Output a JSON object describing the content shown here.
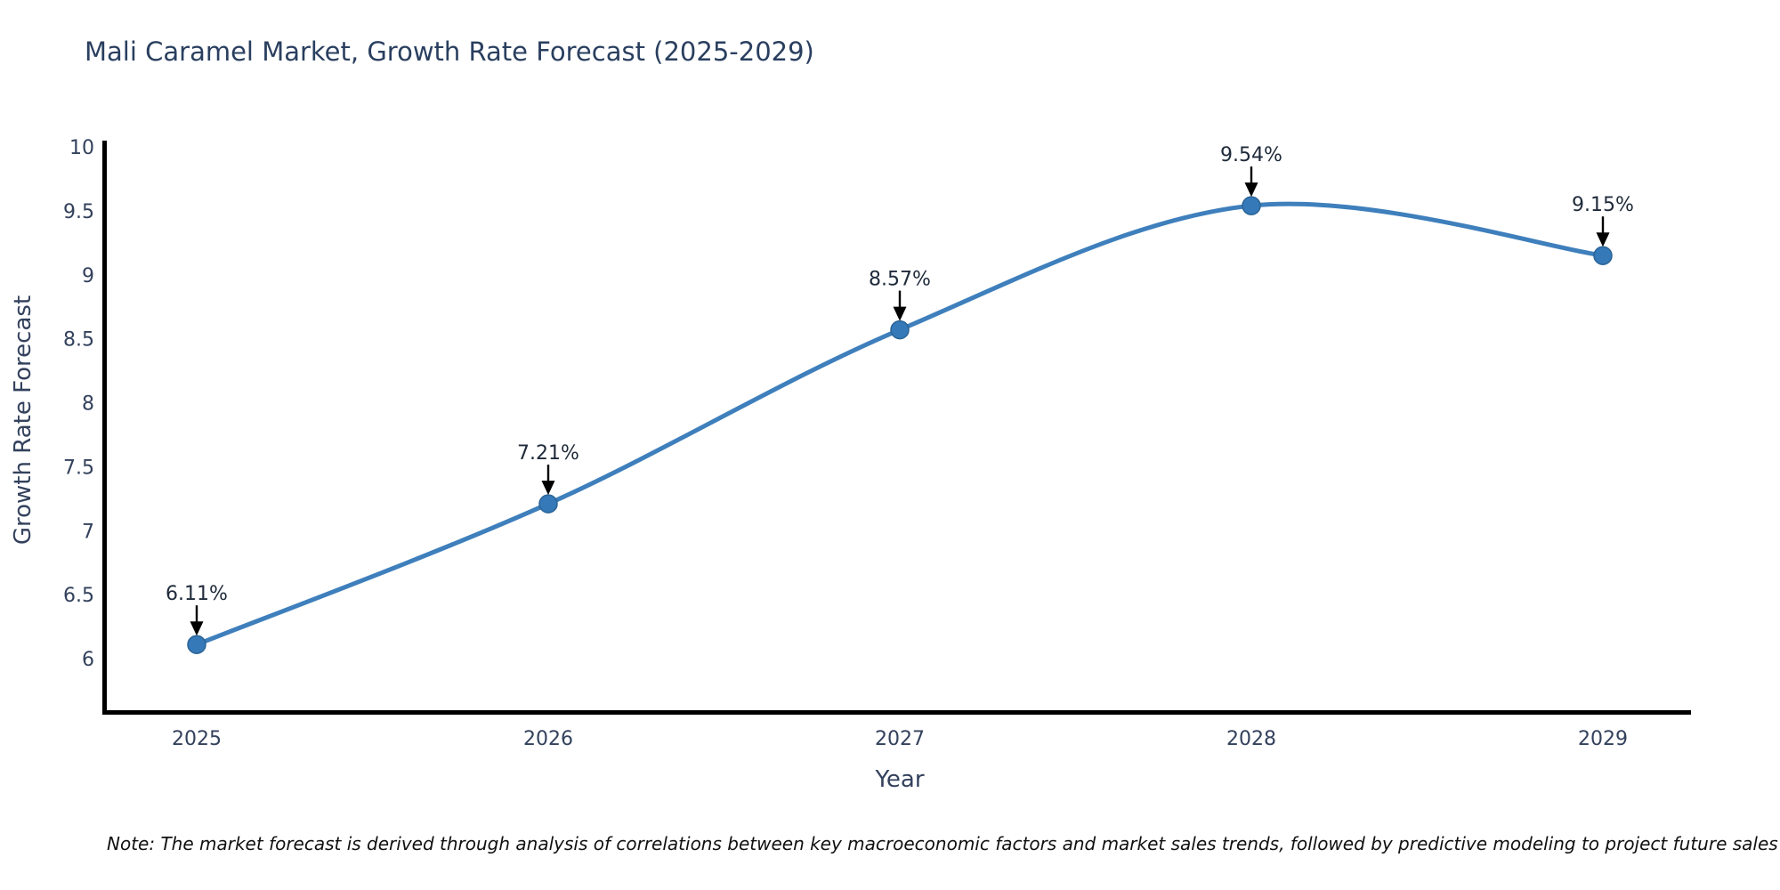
{
  "title": "Mali Caramel Market, Growth Rate Forecast (2025-2029)",
  "note": "Note: The market forecast is derived through analysis of correlations between key macroeconomic factors and market sales trends, followed by predictive modeling to project future sales",
  "chart_data": {
    "type": "line",
    "title": "Mali Caramel Market, Growth Rate Forecast (2025-2029)",
    "xlabel": "Year",
    "ylabel": "Growth Rate Forecast",
    "categories": [
      "2025",
      "2026",
      "2027",
      "2028",
      "2029"
    ],
    "values": [
      6.11,
      7.21,
      8.57,
      9.54,
      9.15
    ],
    "point_labels": [
      "6.11%",
      "7.21%",
      "8.57%",
      "9.54%",
      "9.15%"
    ],
    "yticks": [
      "6",
      "6.5",
      "7",
      "7.5",
      "8",
      "8.5",
      "9",
      "9.5",
      "10"
    ],
    "ytick_values": [
      6,
      6.5,
      7,
      7.5,
      8,
      8.5,
      9,
      9.5,
      10
    ],
    "ylim": [
      6,
      10
    ],
    "grid": false,
    "legend": "none",
    "smooth": true,
    "colors": {
      "line": "#3e7fbc",
      "marker": "#3579b8",
      "marker_edge": "#2b6496",
      "spine": "#000000",
      "arrow": "#000000",
      "axis_text": "#33415c",
      "annotation_text": "#1f2a3a",
      "title_text": "#2a3f5f"
    }
  }
}
